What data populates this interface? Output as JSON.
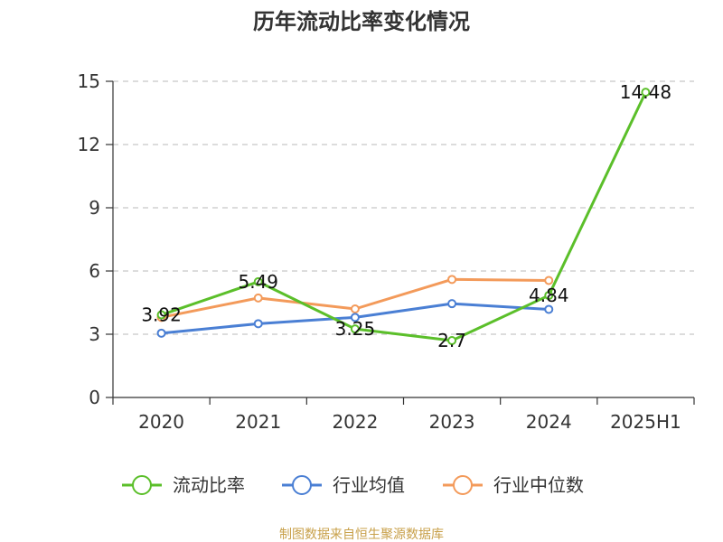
{
  "chart_data": {
    "type": "line",
    "title": "历年流动比率变化情况",
    "categories": [
      "2020",
      "2021",
      "2022",
      "2023",
      "2024",
      "2025H1"
    ],
    "ylim": [
      0,
      15
    ],
    "yticks": [
      "0",
      "3",
      "6",
      "9",
      "12",
      "15"
    ],
    "grid": true,
    "legend_position": "bottom",
    "series": [
      {
        "name": "流动比率",
        "color": "#5bbf2a",
        "values": [
          3.92,
          5.49,
          3.25,
          2.7,
          4.84,
          14.48
        ],
        "labels": [
          "3.92",
          "5.49",
          "3.25",
          "2.7",
          "4.84",
          "14.48"
        ]
      },
      {
        "name": "行业均值",
        "color": "#4a7fd4",
        "values": [
          3.05,
          3.5,
          3.8,
          4.45,
          4.18,
          null
        ]
      },
      {
        "name": "行业中位数",
        "color": "#f39a5a",
        "values": [
          3.8,
          4.72,
          4.2,
          5.6,
          5.55,
          null
        ]
      }
    ]
  },
  "source": "制图数据来自恒生聚源数据库"
}
